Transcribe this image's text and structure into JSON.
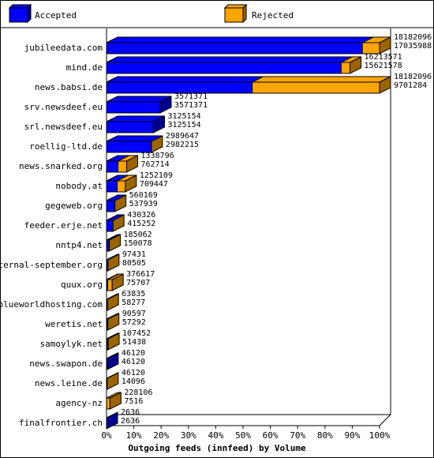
{
  "legend": {
    "accepted_label": "Accepted",
    "rejected_label": "Rejected"
  },
  "colors": {
    "accepted": "#0000ff",
    "accepted_dark": "#00008f",
    "rejected": "#ffa500",
    "rejected_dark": "#9a6400",
    "frame": "#000000"
  },
  "chart_data": {
    "type": "bar",
    "orientation": "horizontal",
    "stacked": true,
    "xlabel": "Outgoing feeds (innfeed) by Volume",
    "xlim": [
      0,
      100
    ],
    "x_ticks": [
      "0%",
      "10%",
      "20%",
      "30%",
      "40%",
      "50%",
      "60%",
      "70%",
      "80%",
      "90%",
      "100%"
    ],
    "max_total": 18182096,
    "categories": [
      "jubileedata.com",
      "mind.de",
      "news.babsi.de",
      "srv.newsdeef.eu",
      "srl.newsdeef.eu",
      "roellig-ltd.de",
      "news.snarked.org",
      "nobody.at",
      "gegeweb.org",
      "feeder.erje.net",
      "nntp4.net",
      "eternal-september.org",
      "quux.org",
      "blueworldhosting.com",
      "weretis.net",
      "samoylyk.net",
      "news.swapon.de",
      "news.leine.de",
      "agency-nz",
      "finalfrontier.ch"
    ],
    "totals": [
      18182096,
      16213571,
      18182096,
      3571371,
      3125154,
      2989647,
      1338796,
      1252109,
      560169,
      430326,
      185062,
      97431,
      376617,
      63835,
      90597,
      107452,
      46120,
      46120,
      228106,
      2636
    ],
    "accepted": [
      17035988,
      15621578,
      9701284,
      3571371,
      3125154,
      2982215,
      762714,
      709447,
      537939,
      415252,
      150078,
      80505,
      75707,
      58277,
      57292,
      51438,
      46120,
      14096,
      7516,
      2636
    ],
    "total_labels": [
      "18182096",
      "16213571",
      "18182096",
      "3571371",
      "3125154",
      "2989647",
      "1338796",
      "1252109",
      "560169",
      "430326",
      "185062",
      "97431",
      "376617",
      "63835",
      "90597",
      "107452",
      "46120",
      "46120",
      "228106",
      "2636"
    ],
    "accepted_labels": [
      "17035988",
      "15621578",
      "9701284",
      "3571371",
      "3125154",
      "2982215",
      "762714",
      "709447",
      "537939",
      "415252",
      "150078",
      "80505",
      "75707",
      "58277",
      "57292",
      "51438",
      "46120",
      "14096",
      "7516",
      "2636"
    ]
  }
}
